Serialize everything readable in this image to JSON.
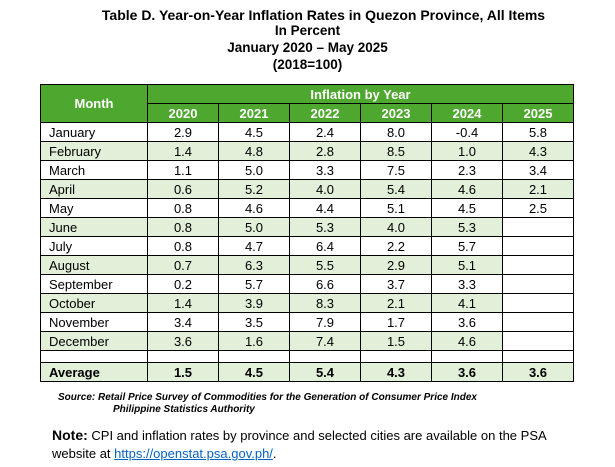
{
  "title": {
    "line1": "Table D. Year-on-Year Inflation Rates in Quezon Province, All Items",
    "line2": "In Percent",
    "line3": "January 2020 – May 2025",
    "line4": "(2018=100)"
  },
  "table": {
    "month_header": "Month",
    "group_header": "Inflation by Year",
    "years": [
      "2020",
      "2021",
      "2022",
      "2023",
      "2024",
      "2025"
    ],
    "rows": [
      {
        "month": "January",
        "values": [
          "2.9",
          "4.5",
          "2.4",
          "8.0",
          "-0.4",
          "5.8"
        ]
      },
      {
        "month": "February",
        "values": [
          "1.4",
          "4.8",
          "2.8",
          "8.5",
          "1.0",
          "4.3"
        ]
      },
      {
        "month": "March",
        "values": [
          "1.1",
          "5.0",
          "3.3",
          "7.5",
          "2.3",
          "3.4"
        ]
      },
      {
        "month": "April",
        "values": [
          "0.6",
          "5.2",
          "4.0",
          "5.4",
          "4.6",
          "2.1"
        ]
      },
      {
        "month": "May",
        "values": [
          "0.8",
          "4.6",
          "4.4",
          "5.1",
          "4.5",
          "2.5"
        ]
      },
      {
        "month": "June",
        "values": [
          "0.8",
          "5.0",
          "5.3",
          "4.0",
          "5.3",
          ""
        ]
      },
      {
        "month": "July",
        "values": [
          "0.8",
          "4.7",
          "6.4",
          "2.2",
          "5.7",
          ""
        ]
      },
      {
        "month": "August",
        "values": [
          "0.7",
          "6.3",
          "5.5",
          "2.9",
          "5.1",
          ""
        ]
      },
      {
        "month": "September",
        "values": [
          "0.2",
          "5.7",
          "6.6",
          "3.7",
          "3.3",
          ""
        ]
      },
      {
        "month": "October",
        "values": [
          "1.4",
          "3.9",
          "8.3",
          "2.1",
          "4.1",
          ""
        ]
      },
      {
        "month": "November",
        "values": [
          "3.4",
          "3.5",
          "7.9",
          "1.7",
          "3.6",
          ""
        ]
      },
      {
        "month": "December",
        "values": [
          "3.6",
          "1.6",
          "7.4",
          "1.5",
          "4.6",
          ""
        ]
      }
    ],
    "average": {
      "label": "Average",
      "values": [
        "1.5",
        "4.5",
        "5.4",
        "4.3",
        "3.6",
        "3.6"
      ]
    }
  },
  "source": {
    "line1": "Source: Retail Price Survey of Commodities for the Generation of Consumer Price Index",
    "line2": "Philippine Statistics Authority"
  },
  "note": {
    "label": "Note:",
    "text": " CPI and inflation rates by province and selected cities are available on the PSA website at ",
    "link": "https://openstat.psa.gov.ph/",
    "end": "."
  },
  "colors": {
    "header_green": "#4ea72e",
    "row_tint": "#e2efd9",
    "link": "#0563c1"
  }
}
